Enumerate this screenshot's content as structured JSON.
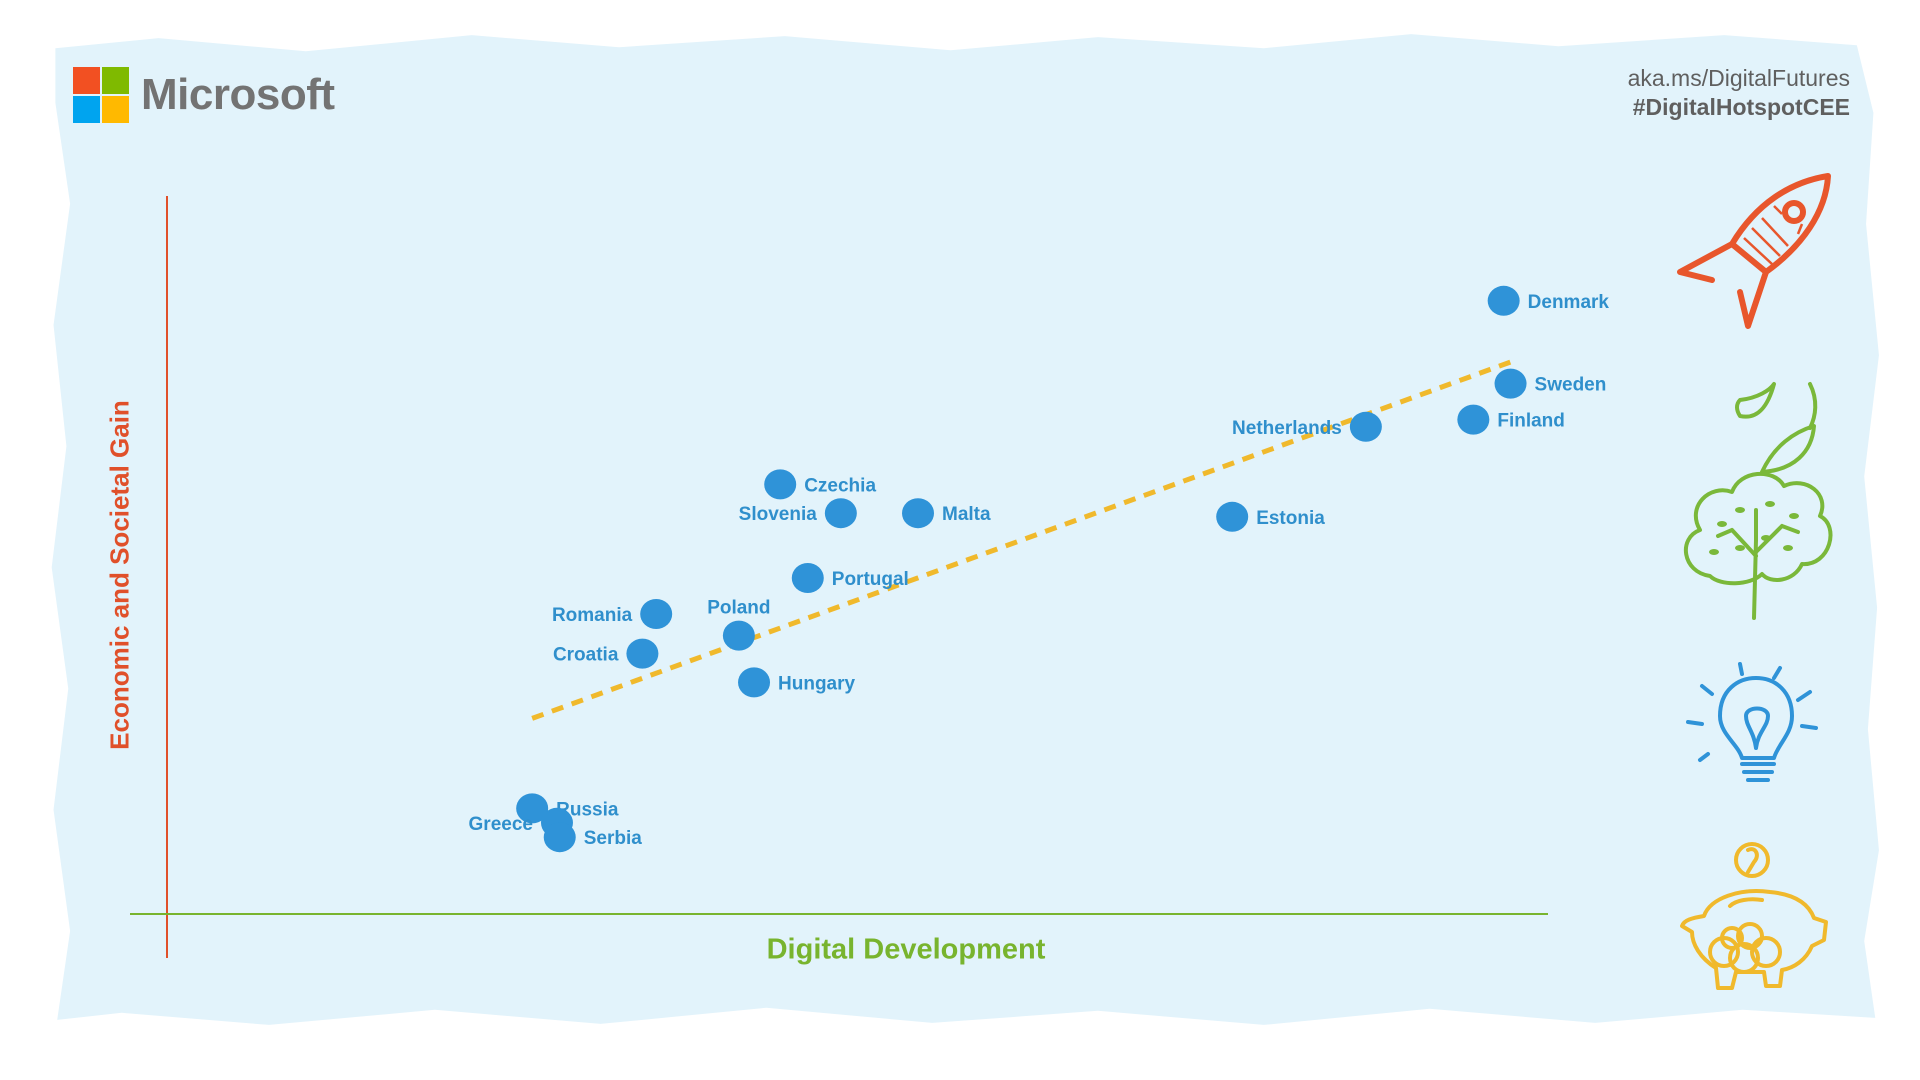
{
  "brand": {
    "name": "Microsoft",
    "logo_colors": [
      "#f25022",
      "#7fba00",
      "#00a4ef",
      "#ffb900"
    ]
  },
  "header": {
    "link": "aka.ms/DigitalFutures",
    "hashtag": "#DigitalHotspotCEE"
  },
  "colors": {
    "background": "#e2f3fb",
    "points": "#2f93d8",
    "labels": "#2f8fcc",
    "trend": "#f0b92c",
    "y_axis": "#e0502a",
    "x_axis": "#78b42e"
  },
  "chart_data": {
    "type": "scatter",
    "title": "",
    "xlabel": "Digital Development",
    "ylabel": "Economic and Societal Gain",
    "xlim": [
      0,
      100
    ],
    "ylim": [
      0,
      100
    ],
    "axis_ticks": false,
    "grid": false,
    "points": [
      {
        "label": "Denmark",
        "x": 97,
        "y": 86,
        "label_side": "right"
      },
      {
        "label": "Sweden",
        "x": 97.5,
        "y": 74.5,
        "label_side": "right"
      },
      {
        "label": "Finland",
        "x": 94.8,
        "y": 69.5,
        "label_side": "right"
      },
      {
        "label": "Netherlands",
        "x": 87,
        "y": 68.5,
        "label_side": "left"
      },
      {
        "label": "Estonia",
        "x": 77.3,
        "y": 56,
        "label_side": "right"
      },
      {
        "label": "Czechia",
        "x": 44.5,
        "y": 60.5,
        "label_side": "right"
      },
      {
        "label": "Slovenia",
        "x": 48.9,
        "y": 56.5,
        "label_side": "left"
      },
      {
        "label": "Malta",
        "x": 54.5,
        "y": 56.5,
        "label_side": "right"
      },
      {
        "label": "Portugal",
        "x": 46.5,
        "y": 47.5,
        "label_side": "right"
      },
      {
        "label": "Romania",
        "x": 35.5,
        "y": 42.5,
        "label_side": "left"
      },
      {
        "label": "Poland",
        "x": 41.5,
        "y": 39.5,
        "label_side": "top"
      },
      {
        "label": "Croatia",
        "x": 34.5,
        "y": 37,
        "label_side": "left"
      },
      {
        "label": "Hungary",
        "x": 42.6,
        "y": 33,
        "label_side": "right"
      },
      {
        "label": "Russia",
        "x": 26.5,
        "y": 15.5,
        "label_side": "right"
      },
      {
        "label": "Greece",
        "x": 28.3,
        "y": 13.5,
        "label_side": "left"
      },
      {
        "label": "Serbia",
        "x": 28.5,
        "y": 11.5,
        "label_side": "right"
      }
    ],
    "trendline": {
      "x": [
        26.5,
        97.5
      ],
      "y": [
        28,
        77.5
      ],
      "style": "dashed"
    }
  },
  "side_icons": [
    "rocket-icon",
    "tree-icon",
    "lightbulb-icon",
    "piggy-bank-icon"
  ]
}
